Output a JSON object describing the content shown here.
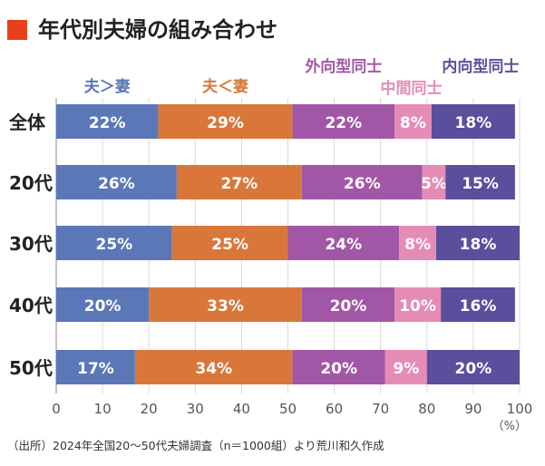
{
  "chart_data": {
    "type": "bar",
    "orientation": "horizontal",
    "stacked": true,
    "title": "年代別夫婦の組み合わせ",
    "categories": [
      "全体",
      "20代",
      "30代",
      "40代",
      "50代"
    ],
    "series": [
      {
        "name": "夫＞妻",
        "color": "#5b77b8",
        "values": [
          22,
          26,
          25,
          20,
          17
        ]
      },
      {
        "name": "夫＜妻",
        "color": "#d9773a",
        "values": [
          29,
          27,
          25,
          33,
          34
        ]
      },
      {
        "name": "外向型同士",
        "color": "#a257a6",
        "values": [
          22,
          26,
          24,
          20,
          20
        ]
      },
      {
        "name": "中間同士",
        "color": "#e58cb6",
        "values": [
          8,
          5,
          8,
          10,
          9
        ]
      },
      {
        "name": "内向型同士",
        "color": "#5a4f9c",
        "values": [
          18,
          15,
          18,
          16,
          20
        ]
      }
    ],
    "value_suffix": "%",
    "xlim": [
      0,
      100
    ],
    "xticks": [
      0,
      10,
      20,
      30,
      40,
      50,
      60,
      70,
      80,
      90,
      100
    ],
    "x_unit": "（%）",
    "grid": true,
    "legend_placement": "top, labels above segments",
    "source_note": "（出所）2024年全国20〜50代夫婦調査（n＝1000組）より荒川和久作成",
    "title_marker_color": "#e8401c"
  }
}
